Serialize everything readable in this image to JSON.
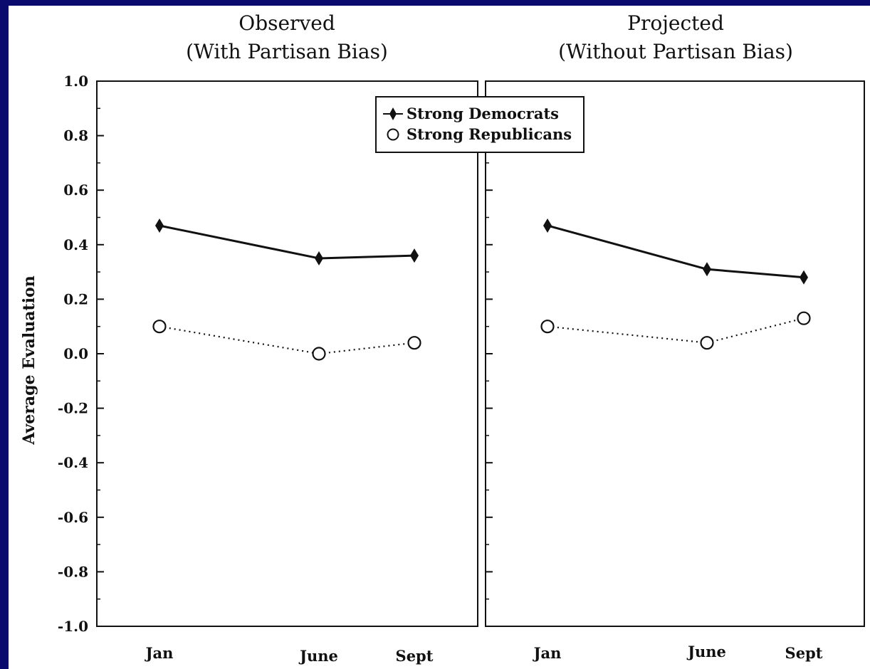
{
  "chart_data": {
    "type": "line",
    "ylabel": "Average Evaluation",
    "ylim": [
      -1.0,
      1.0
    ],
    "yticks": [
      "1.0",
      "0.8",
      "0.6",
      "0.4",
      "0.2",
      "0.0",
      "-0.2",
      "-0.4",
      "-0.6",
      "-0.8",
      "-1.0"
    ],
    "legend": {
      "placement": "top-center",
      "entries": [
        "Strong Democrats",
        "Strong Republicans"
      ]
    },
    "panels": [
      {
        "title_line1": "Observed",
        "title_line2": "(With Partisan Bias)",
        "x_labels": [
          "Jan",
          "June",
          "Sept"
        ],
        "series": [
          {
            "name": "Strong Democrats",
            "marker": "diamond",
            "line": "solid",
            "values": [
              0.47,
              0.35,
              0.36
            ]
          },
          {
            "name": "Strong Republicans",
            "marker": "circle",
            "line": "dotted",
            "values": [
              0.1,
              0.0,
              0.04
            ]
          }
        ]
      },
      {
        "title_line1": "Projected",
        "title_line2": "(Without Partisan Bias)",
        "x_labels": [
          "Jan",
          "June",
          "Sept"
        ],
        "series": [
          {
            "name": "Strong Democrats",
            "marker": "diamond",
            "line": "solid",
            "values": [
              0.47,
              0.31,
              0.28
            ]
          },
          {
            "name": "Strong Republicans",
            "marker": "circle",
            "line": "dotted",
            "values": [
              0.1,
              0.04,
              0.13
            ]
          }
        ]
      }
    ]
  }
}
